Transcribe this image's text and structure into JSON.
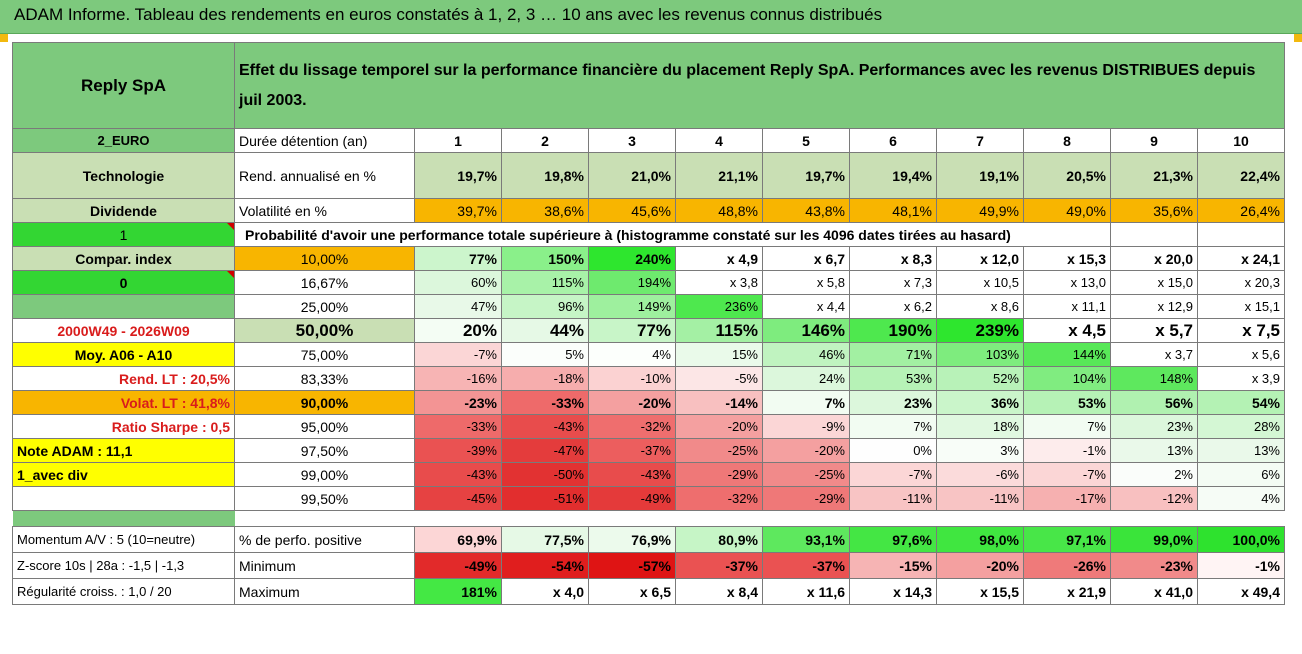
{
  "header": {
    "title": "ADAM Informe. Tableau des rendements en euros constatés à 1, 2, 3 … 10 ans avec les revenus connus distribués"
  },
  "company": "Reply SpA",
  "chart_title": "Effet du lissage temporel sur la performance financière du placement Reply SpA. Performances avec les revenus DISTRIBUES depuis juil 2003.",
  "left_col": {
    "currency": "2_EURO",
    "sector": "Technologie",
    "dividend": "Dividende",
    "one": "1",
    "compar": "Compar. index",
    "zero": "0",
    "period": "2000W49 - 2026W09",
    "moy": "Moy. A06 - A10",
    "rend_lt": "Rend. LT :   20,5%",
    "volat_lt": "Volat. LT :   41,8%",
    "sharpe": "Ratio Sharpe :    0,5",
    "note": "Note ADAM : 11,1",
    "avec_div": "1_avec div",
    "momentum": "Momentum A/V : 5 (10=neutre)",
    "zscore": "Z-score 10s | 28a : -1,5 | -1,3",
    "regularite": "Régularité croiss. : 1,0 / 20"
  },
  "labels": {
    "duree": "Durée détention (an)",
    "rend": "Rend. annualisé en %",
    "vol": "Volatilité en %",
    "prob": "Probabilité d'avoir une performance totale supérieure à (histogramme constaté sur les 4096 dates tirées au hasard)",
    "pos": "% de perfo. positive",
    "min": "Minimum",
    "max": "Maximum"
  },
  "years": [
    "1",
    "2",
    "3",
    "4",
    "5",
    "6",
    "7",
    "8",
    "9",
    "10"
  ],
  "rend": [
    "19,7%",
    "19,8%",
    "21,0%",
    "21,1%",
    "19,7%",
    "19,4%",
    "19,1%",
    "20,5%",
    "21,3%",
    "22,4%"
  ],
  "vol": [
    "39,7%",
    "38,6%",
    "45,6%",
    "48,8%",
    "43,8%",
    "48,1%",
    "49,9%",
    "49,0%",
    "35,6%",
    "26,4%"
  ],
  "prob_rows": [
    {
      "pct": "10,00%",
      "vals": [
        "77%",
        "150%",
        "240%",
        "x 4,9",
        "x 6,7",
        "x 8,3",
        "x 12,0",
        "x 15,3",
        "x 20,0",
        "x 24,1"
      ]
    },
    {
      "pct": "16,67%",
      "vals": [
        "60%",
        "115%",
        "194%",
        "x 3,8",
        "x 5,8",
        "x 7,3",
        "x 10,5",
        "x 13,0",
        "x 15,0",
        "x 20,3"
      ]
    },
    {
      "pct": "25,00%",
      "vals": [
        "47%",
        "96%",
        "149%",
        "236%",
        "x 4,4",
        "x 6,2",
        "x 8,6",
        "x 11,1",
        "x 12,9",
        "x 15,1"
      ]
    },
    {
      "pct": "50,00%",
      "vals": [
        "20%",
        "44%",
        "77%",
        "115%",
        "146%",
        "190%",
        "239%",
        "x 4,5",
        "x 5,7",
        "x 7,5"
      ]
    },
    {
      "pct": "75,00%",
      "vals": [
        "-7%",
        "5%",
        "4%",
        "15%",
        "46%",
        "71%",
        "103%",
        "144%",
        "x 3,7",
        "x 5,6"
      ]
    },
    {
      "pct": "83,33%",
      "vals": [
        "-16%",
        "-18%",
        "-10%",
        "-5%",
        "24%",
        "53%",
        "52%",
        "104%",
        "148%",
        "x 3,9"
      ]
    },
    {
      "pct": "90,00%",
      "vals": [
        "-23%",
        "-33%",
        "-20%",
        "-14%",
        "7%",
        "23%",
        "36%",
        "53%",
        "56%",
        "54%"
      ]
    },
    {
      "pct": "95,00%",
      "vals": [
        "-33%",
        "-43%",
        "-32%",
        "-20%",
        "-9%",
        "7%",
        "18%",
        "7%",
        "23%",
        "28%"
      ]
    },
    {
      "pct": "97,50%",
      "vals": [
        "-39%",
        "-47%",
        "-37%",
        "-25%",
        "-20%",
        "0%",
        "3%",
        "-1%",
        "13%",
        "13%"
      ]
    },
    {
      "pct": "99,00%",
      "vals": [
        "-43%",
        "-50%",
        "-43%",
        "-29%",
        "-25%",
        "-7%",
        "-6%",
        "-7%",
        "2%",
        "6%"
      ]
    },
    {
      "pct": "99,50%",
      "vals": [
        "-45%",
        "-51%",
        "-49%",
        "-32%",
        "-29%",
        "-11%",
        "-11%",
        "-17%",
        "-12%",
        "4%"
      ]
    }
  ],
  "pos": [
    "69,9%",
    "77,5%",
    "76,9%",
    "80,9%",
    "93,1%",
    "97,6%",
    "98,0%",
    "97,1%",
    "99,0%",
    "100,0%"
  ],
  "min": [
    "-49%",
    "-54%",
    "-57%",
    "-37%",
    "-37%",
    "-15%",
    "-20%",
    "-26%",
    "-23%",
    "-1%"
  ],
  "max": [
    "181%",
    "x 4,0",
    "x 6,5",
    "x 8,4",
    "x 11,6",
    "x 14,3",
    "x 15,5",
    "x 21,9",
    "x 41,0",
    "x 49,4"
  ],
  "colors": {
    "prob": [
      [
        "#ccf5cc",
        "#8af08a",
        "#2ee62e",
        "#ffffff",
        "#ffffff",
        "#ffffff",
        "#ffffff",
        "#ffffff",
        "#ffffff",
        "#ffffff"
      ],
      [
        "#dcf7dc",
        "#a8f2a8",
        "#6eea6e",
        "#ffffff",
        "#ffffff",
        "#ffffff",
        "#ffffff",
        "#ffffff",
        "#ffffff",
        "#ffffff"
      ],
      [
        "#e8f9e8",
        "#c6f5c6",
        "#9ef09e",
        "#4ee84e",
        "#ffffff",
        "#ffffff",
        "#ffffff",
        "#ffffff",
        "#ffffff",
        "#ffffff"
      ],
      [
        "#f4fdf4",
        "#e6f9e6",
        "#c8f5c8",
        "#a4f0a4",
        "#7eec7e",
        "#4ee84e",
        "#2ee62e",
        "#ffffff",
        "#ffffff",
        "#ffffff"
      ],
      [
        "#fbd6d6",
        "#fbfefb",
        "#fcfffc",
        "#eafaea",
        "#c0f3c0",
        "#a2f0a2",
        "#7eec7e",
        "#58e858",
        "#ffffff",
        "#ffffff"
      ],
      [
        "#f7b4b4",
        "#f6adad",
        "#fbd2d2",
        "#fce6e6",
        "#dcf7dc",
        "#b6f2b6",
        "#b8f2b8",
        "#80ec80",
        "#5ee85e",
        "#ffffff"
      ],
      [
        "#f39494",
        "#ee6a6a",
        "#f4a0a0",
        "#f8c0c0",
        "#f2fcf2",
        "#dcf7dc",
        "#caf5ca",
        "#b6f2b6",
        "#b0f1b0",
        "#b4f2b4"
      ],
      [
        "#ee6a6a",
        "#e84c4c",
        "#ef6e6e",
        "#f4a0a0",
        "#fbd6d6",
        "#f2fcf2",
        "#e0f8e0",
        "#f2fcf2",
        "#dcf7dc",
        "#d4f7d4"
      ],
      [
        "#ea5252",
        "#e43c3c",
        "#ec5e5e",
        "#f18a8a",
        "#f4a0a0",
        "#fefefe",
        "#f8fdf8",
        "#fdecec",
        "#eaf9ea",
        "#eaf9ea"
      ],
      [
        "#e84c4c",
        "#e23232",
        "#e84c4c",
        "#ef7878",
        "#f18a8a",
        "#fbd6d6",
        "#fbdbdb",
        "#fbd6d6",
        "#fafdfa",
        "#f4fcf4"
      ],
      [
        "#e64242",
        "#e22e2e",
        "#e43a3a",
        "#ee6e6e",
        "#ef7878",
        "#f8c4c4",
        "#f8c4c4",
        "#f6b0b0",
        "#f8c0c0",
        "#f6fcf6"
      ]
    ],
    "pos": [
      "#fcd6d6",
      "#e6f9e6",
      "#ecfaec",
      "#c6f5c6",
      "#5ee85e",
      "#44e644",
      "#40e640",
      "#48e648",
      "#3ae43a",
      "#2ee22e"
    ],
    "min": [
      "#e22a2a",
      "#e01e1e",
      "#df1414",
      "#ea5252",
      "#ea5252",
      "#f6b4b4",
      "#f4a0a0",
      "#ef7a7a",
      "#f18a8a",
      "#fff4f4"
    ],
    "max": [
      "#44e844",
      "#ffffff",
      "#ffffff",
      "#ffffff",
      "#ffffff",
      "#ffffff",
      "#ffffff",
      "#ffffff",
      "#ffffff",
      "#ffffff"
    ]
  }
}
